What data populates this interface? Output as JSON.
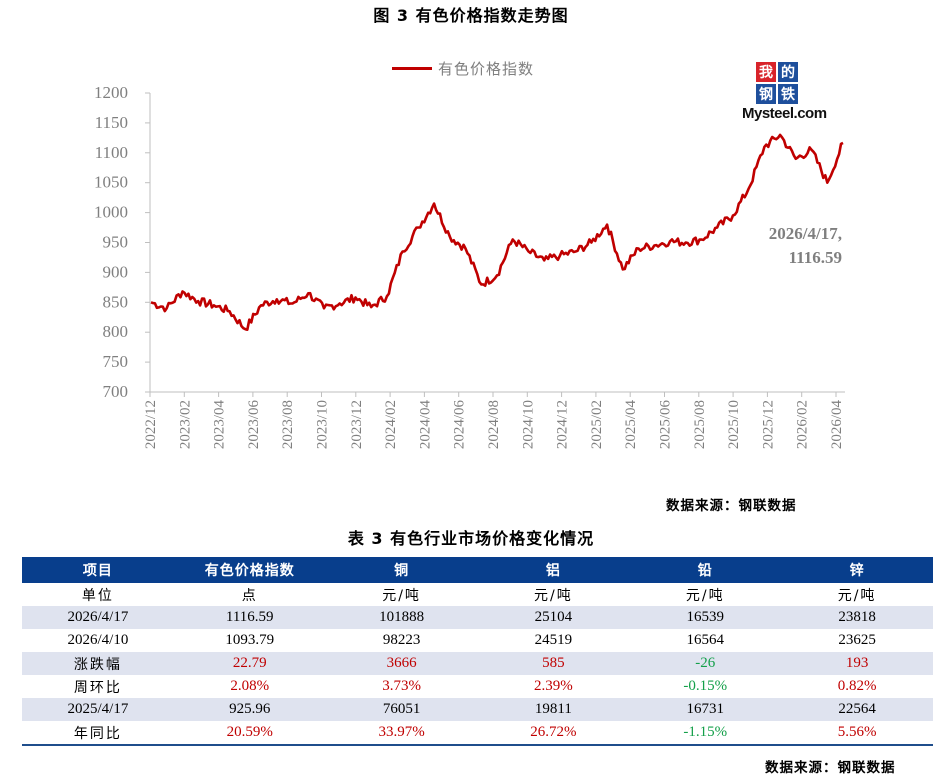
{
  "figure": {
    "title": "图 3  有色价格指数走势图",
    "legend_label": "有色价格指数",
    "logo": {
      "cells": [
        "我",
        "的",
        "钢",
        "铁"
      ],
      "text": "Mysteel.com"
    },
    "annotation_date": "2026/4/17,",
    "annotation_value": "1116.59",
    "source": "数据来源：钢联数据"
  },
  "colors": {
    "line": "#c00000",
    "axis": "#bfbfbf",
    "tick_text": "#7f7f7f",
    "table_header": "#083e8c",
    "table_shade": "#dfe3ef",
    "up": "#c00000",
    "down": "#14a04a"
  },
  "chart_data": {
    "type": "line",
    "title": "有色价格指数走势图",
    "xlabel": "",
    "ylabel": "",
    "ylim": [
      700,
      1200
    ],
    "yticks": [
      700,
      750,
      800,
      850,
      900,
      950,
      1000,
      1050,
      1100,
      1150,
      1200
    ],
    "xticks": [
      "2022/12",
      "2023/02",
      "2023/04",
      "2023/06",
      "2023/08",
      "2023/10",
      "2023/12",
      "2024/02",
      "2024/04",
      "2024/06",
      "2024/08",
      "2024/10",
      "2024/12",
      "2025/02",
      "2025/04",
      "2025/06",
      "2025/08",
      "2025/10",
      "2025/12",
      "2026/02",
      "2026/04"
    ],
    "grid": false,
    "legend_position": "top",
    "series": [
      {
        "name": "有色价格指数",
        "x": [
          "2022/12",
          "2023/01",
          "2023/02",
          "2023/03",
          "2023/04",
          "2023/05",
          "2023/06",
          "2023/07",
          "2023/08",
          "2023/09",
          "2023/10",
          "2023/11",
          "2023/12",
          "2024/01",
          "2024/02",
          "2024/03",
          "2024/04",
          "2024/05",
          "2024/05b",
          "2024/06",
          "2024/07",
          "2024/08",
          "2024/09",
          "2024/10",
          "2024/11",
          "2024/12",
          "2025/01",
          "2025/02",
          "2025/03",
          "2025/04",
          "2025/04b",
          "2025/05",
          "2025/06",
          "2025/07",
          "2025/08",
          "2025/09",
          "2025/10",
          "2025/11",
          "2025/12",
          "2026/01",
          "2026/01b",
          "2026/02",
          "2026/03",
          "2026/03b",
          "2026/04"
        ],
        "values": [
          850,
          840,
          868,
          852,
          845,
          835,
          805,
          845,
          855,
          848,
          865,
          840,
          848,
          858,
          842,
          860,
          935,
          975,
          1015,
          960,
          940,
          880,
          895,
          955,
          935,
          920,
          928,
          935,
          950,
          980,
          905,
          940,
          945,
          952,
          950,
          955,
          975,
          995,
          1040,
          1110,
          1130,
          1090,
          1105,
          1050,
          1116.59
        ]
      }
    ],
    "annotations": [
      {
        "x": "2026/4/17",
        "y": 1116.59,
        "text": "2026/4/17, 1116.59"
      }
    ]
  },
  "table": {
    "title": "表 3 有色行业市场价格变化情况",
    "headers": [
      "项目",
      "有色价格指数",
      "铜",
      "铝",
      "铅",
      "锌"
    ],
    "rows": [
      {
        "label": "单位",
        "cells": [
          "点",
          "元/吨",
          "元/吨",
          "元/吨",
          "元/吨"
        ],
        "shade": false,
        "cn": true
      },
      {
        "label": "2026/4/17",
        "cells": [
          "1116.59",
          "101888",
          "25104",
          "16539",
          "23818"
        ],
        "shade": true
      },
      {
        "label": "2026/4/10",
        "cells": [
          "1093.79",
          "98223",
          "24519",
          "16564",
          "23625"
        ],
        "shade": false
      },
      {
        "label": "涨跌幅",
        "cells": [
          "22.79",
          "3666",
          "585",
          "-26",
          "193"
        ],
        "shade": true,
        "signed": true
      },
      {
        "label": "周环比",
        "cells": [
          "2.08%",
          "3.73%",
          "2.39%",
          "-0.15%",
          "0.82%"
        ],
        "shade": false,
        "signed": true
      },
      {
        "label": "2025/4/17",
        "cells": [
          "925.96",
          "76051",
          "19811",
          "16731",
          "22564"
        ],
        "shade": true
      },
      {
        "label": "年同比",
        "cells": [
          "20.59%",
          "33.97%",
          "26.72%",
          "-1.15%",
          "5.56%"
        ],
        "shade": false,
        "signed": true
      }
    ],
    "source": "数据来源：钢联数据"
  }
}
